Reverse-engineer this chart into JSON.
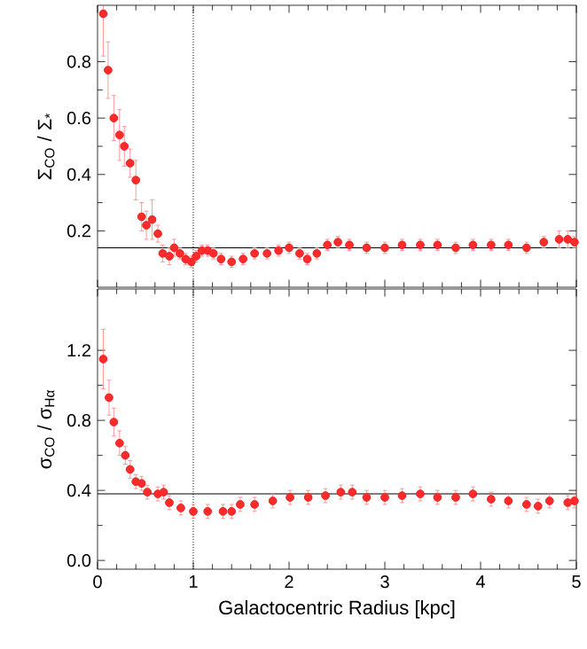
{
  "chart_data": [
    {
      "type": "scatter",
      "ylabel": "Σ$_{CO}$ / Σ$_{*}$",
      "xlim": [
        0,
        5
      ],
      "ylim": [
        0,
        1
      ],
      "xticks": [
        0,
        1,
        2,
        3,
        4,
        5
      ],
      "yticks": [
        0.2,
        0.4,
        0.6,
        0.8
      ],
      "tick_labels": "y",
      "marker": "circle",
      "ref_lines": [
        {
          "axis": "y",
          "value": 0.14,
          "color": "#000000",
          "line_style": "solid"
        },
        {
          "axis": "x",
          "value": 1,
          "color": "#000000",
          "line_style": "dotted"
        }
      ],
      "series": [
        {
          "color": "#ff2a2a",
          "x": [
            0.06,
            0.11,
            0.17,
            0.23,
            0.28,
            0.34,
            0.4,
            0.46,
            0.51,
            0.57,
            0.63,
            0.68,
            0.75,
            0.8,
            0.86,
            0.92,
            0.98,
            1.03,
            1.09,
            1.15,
            1.21,
            1.29,
            1.4,
            1.52,
            1.64,
            1.77,
            1.89,
            2.0,
            2.11,
            2.19,
            2.29,
            2.4,
            2.51,
            2.63,
            2.81,
            3.0,
            3.18,
            3.37,
            3.55,
            3.74,
            3.92,
            4.11,
            4.29,
            4.48,
            4.66,
            4.82,
            4.91,
            4.98
          ],
          "values": [
            0.97,
            0.77,
            0.6,
            0.54,
            0.5,
            0.44,
            0.38,
            0.25,
            0.22,
            0.24,
            0.19,
            0.12,
            0.11,
            0.14,
            0.12,
            0.1,
            0.09,
            0.11,
            0.13,
            0.13,
            0.12,
            0.1,
            0.09,
            0.1,
            0.12,
            0.12,
            0.13,
            0.14,
            0.12,
            0.1,
            0.12,
            0.15,
            0.16,
            0.15,
            0.14,
            0.14,
            0.15,
            0.15,
            0.15,
            0.14,
            0.15,
            0.15,
            0.15,
            0.14,
            0.16,
            0.17,
            0.17,
            0.16
          ],
          "errors": [
            0.15,
            0.1,
            0.08,
            0.09,
            0.07,
            0.05,
            0.07,
            0.05,
            0.05,
            0.07,
            0.03,
            0.03,
            0.03,
            0.03,
            0.02,
            0.02,
            0.02,
            0.02,
            0.02,
            0.02,
            0.02,
            0.02,
            0.02,
            0.02,
            0.02,
            0.02,
            0.02,
            0.02,
            0.02,
            0.02,
            0.02,
            0.02,
            0.02,
            0.02,
            0.02,
            0.02,
            0.02,
            0.02,
            0.02,
            0.02,
            0.02,
            0.02,
            0.02,
            0.02,
            0.02,
            0.03,
            0.03,
            0.02
          ]
        }
      ]
    },
    {
      "type": "scatter",
      "xlabel": "Galactocentric Radius [kpc]",
      "ylabel": "σ$_{CO}$ / σ$_{Hα}$",
      "xlim": [
        0,
        5
      ],
      "ylim": [
        -0.05,
        1.55
      ],
      "xticks": [
        0,
        1,
        2,
        3,
        4,
        5
      ],
      "yticks": [
        {
          "value": 0,
          "label": "0.0"
        },
        0.4,
        0.8,
        1.2
      ],
      "marker": "circle",
      "ref_lines": [
        {
          "axis": "y",
          "value": 0.38,
          "color": "#000000",
          "line_style": "solid"
        },
        {
          "axis": "x",
          "value": 1,
          "color": "#000000",
          "line_style": "dotted"
        }
      ],
      "series": [
        {
          "color": "#ff2a2a",
          "x": [
            0.06,
            0.12,
            0.17,
            0.23,
            0.29,
            0.34,
            0.4,
            0.46,
            0.52,
            0.63,
            0.69,
            0.75,
            0.87,
            1.0,
            1.15,
            1.31,
            1.4,
            1.49,
            1.64,
            1.83,
            2.01,
            2.2,
            2.38,
            2.54,
            2.66,
            2.81,
            3.0,
            3.18,
            3.37,
            3.55,
            3.74,
            3.92,
            4.11,
            4.29,
            4.48,
            4.6,
            4.72,
            4.91,
            4.98
          ],
          "values": [
            1.15,
            0.93,
            0.79,
            0.67,
            0.6,
            0.52,
            0.45,
            0.44,
            0.39,
            0.38,
            0.39,
            0.33,
            0.3,
            0.28,
            0.28,
            0.28,
            0.28,
            0.32,
            0.32,
            0.34,
            0.36,
            0.36,
            0.37,
            0.39,
            0.39,
            0.36,
            0.36,
            0.37,
            0.38,
            0.36,
            0.36,
            0.38,
            0.35,
            0.34,
            0.32,
            0.31,
            0.34,
            0.33,
            0.34
          ],
          "errors": [
            0.17,
            0.1,
            0.08,
            0.07,
            0.05,
            0.05,
            0.04,
            0.04,
            0.04,
            0.04,
            0.04,
            0.04,
            0.04,
            0.04,
            0.04,
            0.04,
            0.04,
            0.04,
            0.04,
            0.04,
            0.04,
            0.04,
            0.04,
            0.04,
            0.04,
            0.04,
            0.04,
            0.04,
            0.04,
            0.04,
            0.04,
            0.04,
            0.04,
            0.04,
            0.04,
            0.04,
            0.04,
            0.04,
            0.04
          ]
        }
      ]
    }
  ]
}
